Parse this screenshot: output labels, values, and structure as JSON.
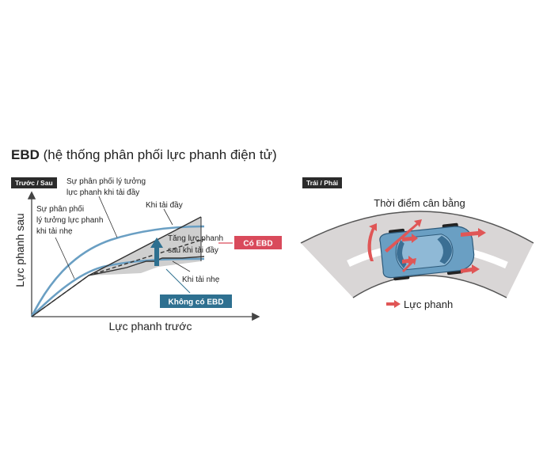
{
  "title": {
    "bold": "EBD",
    "rest": "(hệ thống phân phối lực phanh điện tử)"
  },
  "left_diagram": {
    "tag": "Trước / Sau",
    "y_axis": "Lực phanh sau",
    "x_axis": "Lực phanh trước",
    "ideal_light_lines": [
      "Sự phân phối",
      "lý tưởng lực phanh",
      "khi tải nhẹ"
    ],
    "ideal_full_lines": [
      "Sự phân phối lý tưởng",
      "lực phanh khi tải đầy"
    ],
    "full_load": "Khi tải đầy",
    "light_load": "Khi tải nhẹ",
    "increase_lines": [
      "Tăng lực phanh",
      "sau khi tải đầy"
    ],
    "with_ebd": "Có EBD",
    "without_ebd": "Không có EBD",
    "colors": {
      "curve": "#6a9fc3",
      "with_ebd": "#d94a5b",
      "without_ebd": "#2e7090",
      "arrow": "#2e7090"
    }
  },
  "right_diagram": {
    "tag": "Trái / Phải",
    "title": "Thời điểm cân bằng",
    "legend": "Lực phanh",
    "colors": {
      "arrow": "#e05656",
      "road": "#d9d6d6",
      "car": "#6a9fc3"
    }
  }
}
